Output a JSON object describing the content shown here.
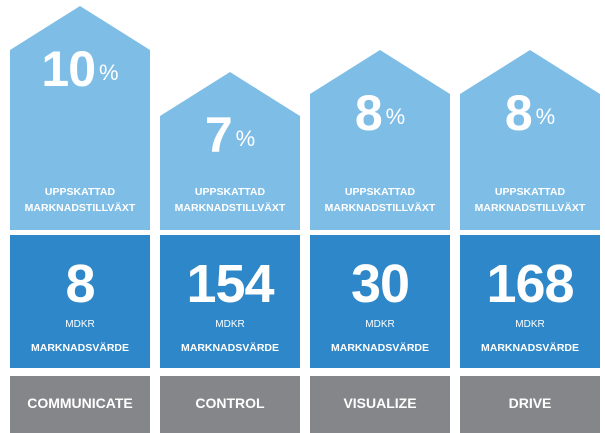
{
  "chart_data": {
    "type": "bar",
    "categories": [
      "COMMUNICATE",
      "CONTROL",
      "VISUALIZE",
      "DRIVE"
    ],
    "series": [
      {
        "name": "UPPSKATTAD MARKNADSTILLVÄXT",
        "values": [
          10,
          7,
          8,
          8
        ],
        "unit": "%"
      },
      {
        "name": "MARKNADSVÄRDE",
        "values": [
          8,
          154,
          30,
          168
        ],
        "unit": "MDKR"
      }
    ],
    "growth_label_line1": "UPPSKATTAD",
    "growth_label_line2": "MARKNADSTILLVÄXT",
    "percent_sign": "%",
    "value_unit": "MDKR",
    "value_label": "MARKNADSVÄRDE",
    "colors": {
      "growth_house": "#7ebde6",
      "value_box": "#2e87c8",
      "name_box": "#85868a",
      "text": "#ffffff"
    }
  }
}
